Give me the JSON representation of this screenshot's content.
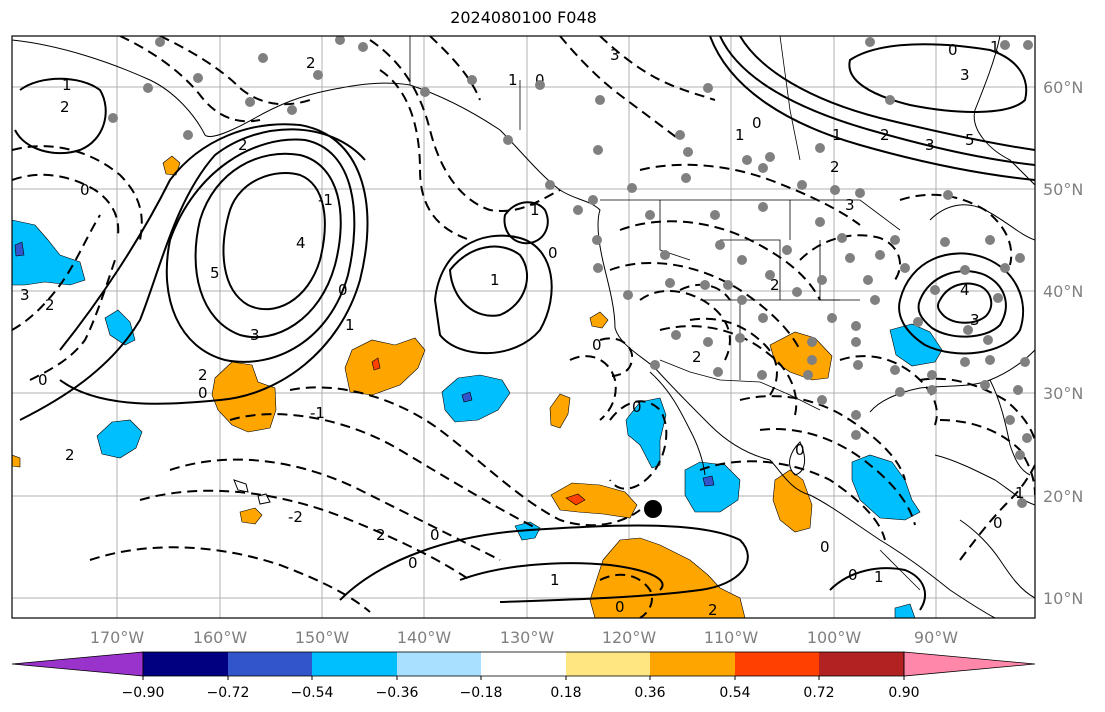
{
  "map": {
    "title": "2024080100 F048",
    "longitude_labels": [
      "170°W",
      "160°W",
      "150°W",
      "140°W",
      "130°W",
      "120°W",
      "110°W",
      "100°W",
      "90°W"
    ],
    "latitude_labels": [
      "60°N",
      "50°N",
      "40°N",
      "30°N",
      "20°N",
      "10°N"
    ],
    "contour_labels": [
      "0",
      "1",
      "2",
      "3",
      "4",
      "5",
      "-1",
      "-2",
      "-3"
    ],
    "marker": "black-dot",
    "station_color": "#808080"
  },
  "colorbar": {
    "ticks": [
      "−0.90",
      "−0.72",
      "−0.54",
      "−0.36",
      "−0.18",
      "0.18",
      "0.36",
      "0.54",
      "0.72",
      "0.90"
    ],
    "colors": [
      "#9933cc",
      "#000080",
      "#3355cc",
      "#00bfff",
      "#aae0ff",
      "#ffffff",
      "#ffe680",
      "#ffa500",
      "#ff4000",
      "#b22222",
      "#ff88aa"
    ]
  }
}
